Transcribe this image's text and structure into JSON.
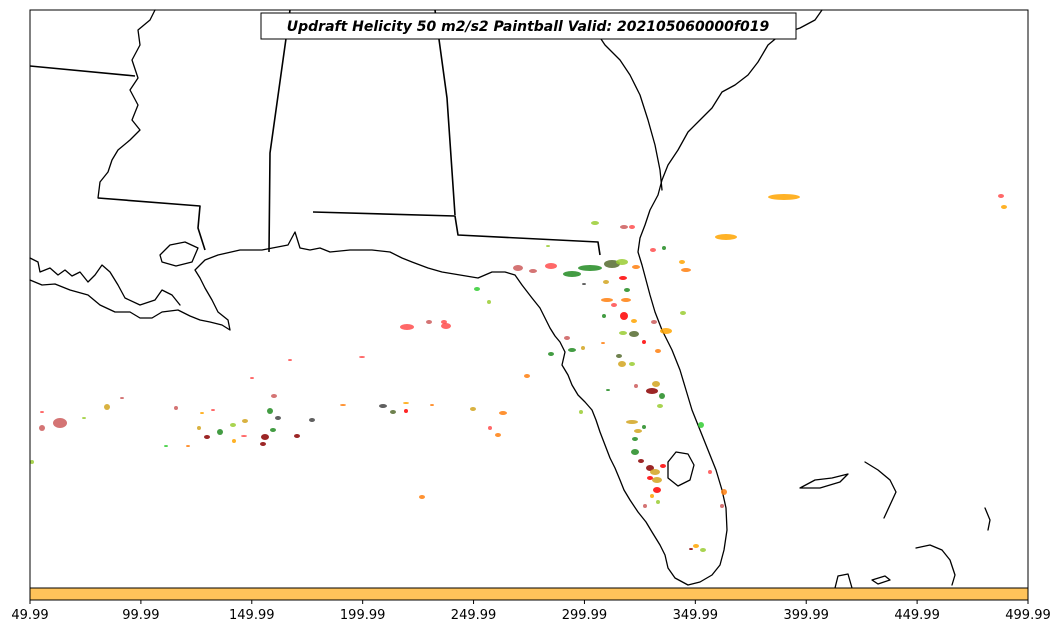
{
  "title": "Updraft Helicity 50 m2/s2 Paintball Valid: 202105060000f019",
  "colorbar": {
    "color": "#ffc35a",
    "ticks": [
      "49.99",
      "99.99",
      "149.99",
      "199.99",
      "249.99",
      "299.99",
      "349.99",
      "399.99",
      "449.99",
      "499.99"
    ]
  },
  "paintball_colors": [
    "#ff4d4d",
    "#ffa500",
    "#228b22",
    "#9acd32",
    "#8b0000",
    "#cd5c5c",
    "#556b2f",
    "#ff7f0e",
    "#32cd32",
    "#d2a520",
    "#444444",
    "#ff0000"
  ]
}
